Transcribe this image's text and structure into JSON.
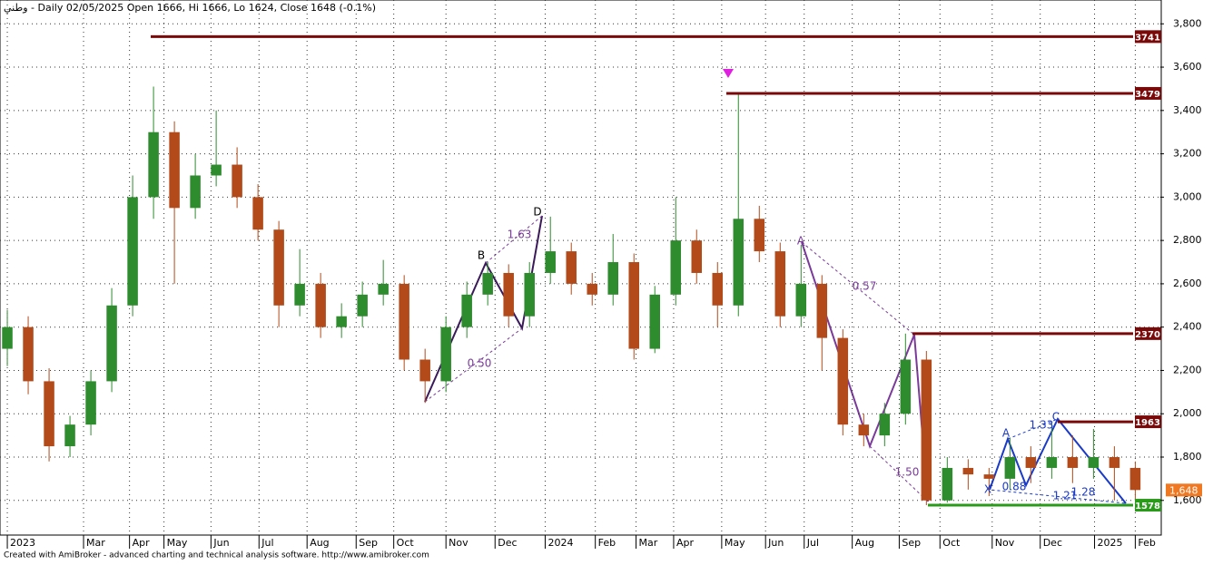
{
  "chart_data": {
    "type": "candlestick",
    "title": "وطني - Daily 02/05/2025 Open 1666, Hi 1666, Lo 1624, Close 1648 (-0.1%)",
    "footer": "Created with AmiBroker - advanced charting and technical analysis software. http://www.amibroker.com",
    "x": [
      0,
      2,
      4,
      6,
      8,
      10,
      12,
      14,
      16,
      18,
      20,
      22,
      24,
      26,
      28,
      30,
      32,
      34,
      36,
      38,
      40,
      42,
      44,
      46,
      48,
      50,
      52,
      54,
      56,
      58,
      60,
      62,
      64,
      66,
      68,
      70,
      72,
      74,
      76,
      78,
      80,
      82,
      84,
      86,
      88,
      90,
      92,
      94,
      96,
      98,
      100,
      102,
      104,
      106,
      108
    ],
    "open": [
      2300,
      2400,
      2150,
      1850,
      1950,
      2150,
      2500,
      3000,
      3300,
      2950,
      3100,
      3150,
      3000,
      2850,
      2500,
      2600,
      2400,
      2450,
      2550,
      2600,
      2250,
      2150,
      2400,
      2550,
      2650,
      2450,
      2650,
      2750,
      2600,
      2550,
      2700,
      2300,
      2550,
      2800,
      2650,
      2500,
      2900,
      2750,
      2450,
      2600,
      2350,
      1950,
      1900,
      2000,
      2250,
      1600,
      1750,
      1720,
      1700,
      1800,
      1750,
      1800,
      1750,
      1800,
      1750
    ],
    "high": [
      2480,
      2450,
      2210,
      1990,
      2200,
      2580,
      3100,
      3510,
      3350,
      3200,
      3400,
      3230,
      3060,
      2890,
      2760,
      2650,
      2510,
      2610,
      2710,
      2640,
      2300,
      2450,
      2610,
      2700,
      2690,
      2700,
      2910,
      2790,
      2650,
      2830,
      2740,
      2590,
      3000,
      2850,
      2700,
      3479,
      2960,
      2790,
      2780,
      2640,
      2390,
      2000,
      2050,
      2370,
      2290,
      1800,
      1790,
      1750,
      1890,
      1850,
      1960,
      1900,
      1930,
      1850,
      1780
    ],
    "low": [
      2220,
      2090,
      1780,
      1800,
      1900,
      2100,
      2450,
      2900,
      2600,
      2900,
      3050,
      2950,
      2800,
      2400,
      2450,
      2350,
      2350,
      2400,
      2500,
      2200,
      2050,
      2100,
      2350,
      2500,
      2400,
      2400,
      2600,
      2550,
      2500,
      2500,
      2250,
      2280,
      2500,
      2600,
      2400,
      2450,
      2700,
      2400,
      2400,
      2200,
      1900,
      1850,
      1850,
      1950,
      1578,
      1590,
      1650,
      1620,
      1650,
      1680,
      1700,
      1680,
      1700,
      1600,
      1600
    ],
    "close": [
      2400,
      2150,
      1850,
      1950,
      2150,
      2500,
      3000,
      3300,
      2950,
      3100,
      3150,
      3000,
      2850,
      2500,
      2600,
      2400,
      2450,
      2550,
      2600,
      2250,
      2150,
      2400,
      2550,
      2650,
      2450,
      2650,
      2750,
      2600,
      2550,
      2700,
      2300,
      2550,
      2800,
      2650,
      2500,
      2900,
      2750,
      2450,
      2600,
      2350,
      1950,
      1900,
      2000,
      2250,
      1600,
      1750,
      1720,
      1700,
      1800,
      1750,
      1800,
      1750,
      1800,
      1750,
      1648
    ],
    "up_color": "#2e8b2e",
    "down_color": "#b34a1a",
    "xlim": [
      -0.7,
      110.4
    ],
    "xticks": [
      {
        "value": 0,
        "label": "2023"
      },
      {
        "value": 7.3,
        "label": "Mar"
      },
      {
        "value": 11.7,
        "label": "Apr"
      },
      {
        "value": 15,
        "label": "May"
      },
      {
        "value": 19.5,
        "label": "Jun"
      },
      {
        "value": 24.1,
        "label": "Jul"
      },
      {
        "value": 28.7,
        "label": "Aug"
      },
      {
        "value": 33.4,
        "label": "Sep"
      },
      {
        "value": 37,
        "label": "Oct"
      },
      {
        "value": 42,
        "label": "Nov"
      },
      {
        "value": 46.7,
        "label": "Dec"
      },
      {
        "value": 51.5,
        "label": "2024"
      },
      {
        "value": 56.3,
        "label": "Feb"
      },
      {
        "value": 60.2,
        "label": "Mar"
      },
      {
        "value": 63.8,
        "label": "Apr"
      },
      {
        "value": 68.4,
        "label": "May"
      },
      {
        "value": 72.6,
        "label": "Jun"
      },
      {
        "value": 76.3,
        "label": "Jul"
      },
      {
        "value": 80.9,
        "label": "Aug"
      },
      {
        "value": 85.4,
        "label": "Sep"
      },
      {
        "value": 89.3,
        "label": "Oct"
      },
      {
        "value": 94.3,
        "label": "Nov"
      },
      {
        "value": 98.9,
        "label": "Dec"
      },
      {
        "value": 104.1,
        "label": "2025"
      },
      {
        "value": 108,
        "label": "Feb"
      }
    ],
    "ylim": [
      1440,
      3910
    ],
    "yticks": [
      {
        "value": 1600,
        "label": "1,600"
      },
      {
        "value": 1800,
        "label": "1,800"
      },
      {
        "value": 2000,
        "label": "2,000"
      },
      {
        "value": 2200,
        "label": "2,200"
      },
      {
        "value": 2400,
        "label": "2,400"
      },
      {
        "value": 2600,
        "label": "2,600"
      },
      {
        "value": 2800,
        "label": "2,800"
      },
      {
        "value": 3000,
        "label": "3,000"
      },
      {
        "value": 3200,
        "label": "3,200"
      },
      {
        "value": 3400,
        "label": "3,400"
      },
      {
        "value": 3600,
        "label": "3,600"
      },
      {
        "value": 3800,
        "label": "3,800"
      }
    ],
    "grid": true,
    "levels": [
      {
        "value": 3741,
        "color": "#7a0a0a"
      },
      {
        "value": 3479,
        "color": "#7a0a0a"
      },
      {
        "value": 2370,
        "color": "#7a0a0a"
      },
      {
        "value": 1963,
        "color": "#7a0a0a"
      },
      {
        "value": 1578,
        "color": "#2a9a1a"
      }
    ],
    "last_price": {
      "value": 1648,
      "label": "1,648",
      "color": "#f07820"
    },
    "annotations": [
      "B",
      "D",
      "1.63",
      "0.50",
      "A",
      "0.57",
      "1.50",
      "A",
      "X",
      "C",
      "1.33",
      "0.88",
      "1.21",
      "1.28"
    ]
  }
}
